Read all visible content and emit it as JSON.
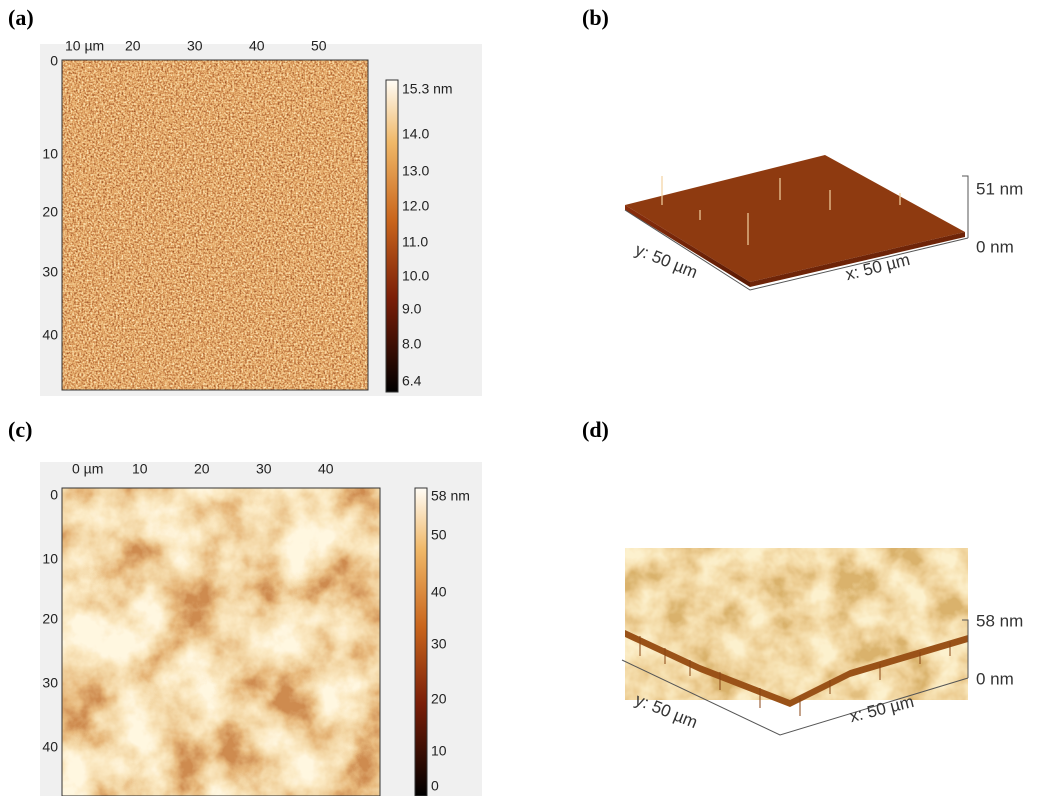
{
  "panels": [
    {
      "label": "(a)",
      "x_ticks": [
        "10 µm",
        "20",
        "30",
        "40",
        "50"
      ],
      "y_ticks": [
        "0",
        "10",
        "20",
        "30",
        "40"
      ],
      "colorbar_ticks": [
        "15.3 nm",
        "14.0",
        "13.0",
        "12.0",
        "11.0",
        "10.0",
        "9.0",
        "8.0",
        "6.4"
      ]
    },
    {
      "label": "(b)",
      "z_ticks": [
        "51 nm",
        "0 nm"
      ],
      "y_axis": "y: 50 µm",
      "x_axis": "x: 50 µm"
    },
    {
      "label": "(c)",
      "x_ticks": [
        "0 µm",
        "10",
        "20",
        "30",
        "40"
      ],
      "y_ticks": [
        "0",
        "10",
        "20",
        "30",
        "40"
      ],
      "colorbar_ticks": [
        "58 nm",
        "50",
        "40",
        "30",
        "20",
        "10",
        "0"
      ]
    },
    {
      "label": "(d)",
      "z_ticks": [
        "58 nm",
        "0 nm"
      ],
      "y_axis": "y: 50 µm",
      "x_axis": "x: 50 µm"
    }
  ]
}
